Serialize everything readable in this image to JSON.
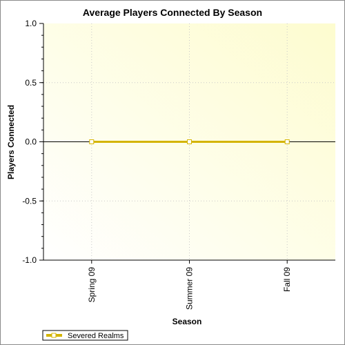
{
  "chart_data": {
    "type": "line",
    "title": "Average Players Connected By Season",
    "xlabel": "Season",
    "ylabel": "Players Connected",
    "categories": [
      "Spring 09",
      "Summer 09",
      "Fall 09"
    ],
    "series": [
      {
        "name": "Severed Realms",
        "values": [
          0,
          0,
          0
        ],
        "color": "#d4b400"
      }
    ],
    "ylim": [
      -1.0,
      1.0
    ],
    "yticks": [
      "1.0",
      "0.5",
      "0.0",
      "-0.5",
      "-1.0"
    ],
    "grid": true,
    "legend": "bottom-left",
    "colors": {
      "plot_gradient_start": "#ffffff",
      "plot_gradient_end": "#fdfccf"
    }
  }
}
